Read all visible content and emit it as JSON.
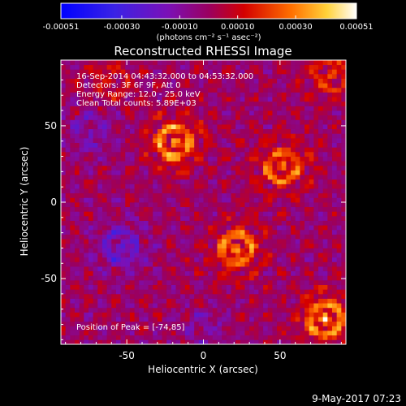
{
  "chart_data": {
    "type": "heatmap",
    "title": "Reconstructed RHESSI Image",
    "xlabel": "Heliocentric X (arcsec)",
    "ylabel": "Heliocentric Y (arcsec)",
    "xlim": [
      -93,
      93
    ],
    "ylim": [
      -93,
      93
    ],
    "xticks": [
      -50,
      0,
      50
    ],
    "yticks": [
      -50,
      0,
      50
    ],
    "colorbar": {
      "units": "(photons cm⁻² s⁻¹ asec⁻²)",
      "tick_labels": [
        "-0.00051",
        "-0.00030",
        "-0.00010",
        "0.00010",
        "0.00030",
        "0.00051"
      ],
      "range": [
        -0.00051,
        0.00051
      ]
    },
    "annotations": [
      "16-Sep-2014 04:43:32.000 to 04:53:32.000",
      "Detectors: 3F 6F 9F, Att 0",
      "Energy Range: 12.0 - 25.0 keV",
      "Clean    Total counts: 5.89E+03"
    ],
    "peak_text": "Position of Peak = [-74,85]",
    "features": [
      {
        "x": -20,
        "y": 38,
        "value": 0.00051
      },
      {
        "x": 50,
        "y": 22,
        "value": 0.00042
      },
      {
        "x": 20,
        "y": -32,
        "value": 0.00045
      },
      {
        "x": 78,
        "y": -78,
        "value": 0.00051
      },
      {
        "x": 82,
        "y": 82,
        "value": 0.00028
      },
      {
        "x": -62,
        "y": 78,
        "value": 0.00018
      },
      {
        "x": -75,
        "y": 45,
        "value": -0.00022
      },
      {
        "x": -55,
        "y": -30,
        "value": -0.0003
      },
      {
        "x": 0,
        "y": -85,
        "value": -0.00015
      }
    ]
  },
  "footer_date": "9-May-2017 07:23"
}
